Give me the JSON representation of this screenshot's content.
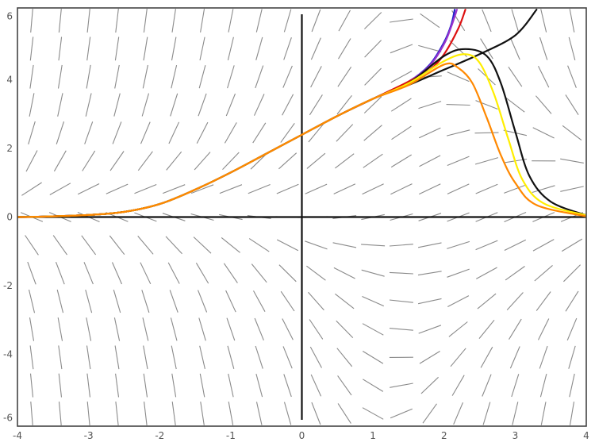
{
  "chart_data": {
    "type": "line",
    "title": "",
    "xlabel": "",
    "ylabel": "",
    "xlim": [
      -4,
      4
    ],
    "ylim": [
      -6.1,
      6.1
    ],
    "x_ticks": [
      -4,
      -3,
      -2,
      -1,
      0,
      1,
      2,
      3,
      4
    ],
    "y_ticks": [
      -6,
      -4,
      -2,
      0,
      2,
      4,
      6
    ],
    "x_tick_labels": [
      "-4",
      "-3",
      "-2",
      "-1",
      "0",
      "1",
      "2",
      "3",
      "4"
    ],
    "y_tick_labels": [
      "-6",
      "-4",
      "-2",
      "0",
      "2",
      "4",
      "6"
    ],
    "grid": false,
    "direction_field": true,
    "series": [
      {
        "color": "#2222cc",
        "points": [
          [
            -4,
            0
          ],
          [
            -3.5,
            0.02
          ],
          [
            -3,
            0.06
          ],
          [
            -2.5,
            0.15
          ],
          [
            -2,
            0.38
          ],
          [
            -1.5,
            0.8
          ],
          [
            -1,
            1.3
          ],
          [
            -0.5,
            1.85
          ],
          [
            0,
            2.4
          ],
          [
            0.5,
            2.95
          ],
          [
            1,
            3.45
          ],
          [
            1.5,
            3.95
          ],
          [
            1.8,
            4.45
          ],
          [
            2.0,
            5.1
          ],
          [
            2.1,
            5.6
          ],
          [
            2.15,
            6.05
          ]
        ]
      },
      {
        "color": "#9933cc",
        "points": [
          [
            -4,
            0
          ],
          [
            -3.5,
            0.02
          ],
          [
            -3,
            0.06
          ],
          [
            -2.5,
            0.15
          ],
          [
            -2,
            0.38
          ],
          [
            -1.5,
            0.8
          ],
          [
            -1,
            1.3
          ],
          [
            -0.5,
            1.85
          ],
          [
            0,
            2.4
          ],
          [
            0.5,
            2.95
          ],
          [
            1,
            3.45
          ],
          [
            1.5,
            3.95
          ],
          [
            1.8,
            4.42
          ],
          [
            2.0,
            5.05
          ],
          [
            2.1,
            5.55
          ],
          [
            2.18,
            6.05
          ]
        ]
      },
      {
        "color": "#dd1111",
        "points": [
          [
            -4,
            0
          ],
          [
            -3.5,
            0.02
          ],
          [
            -3,
            0.06
          ],
          [
            -2.5,
            0.15
          ],
          [
            -2,
            0.38
          ],
          [
            -1.5,
            0.8
          ],
          [
            -1,
            1.3
          ],
          [
            -0.5,
            1.85
          ],
          [
            0,
            2.4
          ],
          [
            0.5,
            2.95
          ],
          [
            1,
            3.45
          ],
          [
            1.5,
            3.95
          ],
          [
            1.8,
            4.3
          ],
          [
            2.0,
            4.75
          ],
          [
            2.2,
            5.5
          ],
          [
            2.3,
            6.05
          ]
        ]
      },
      {
        "color": "#111111",
        "points": [
          [
            -4,
            0
          ],
          [
            -3.5,
            0.02
          ],
          [
            -3,
            0.06
          ],
          [
            -2.5,
            0.15
          ],
          [
            -2,
            0.38
          ],
          [
            -1.5,
            0.8
          ],
          [
            -1,
            1.3
          ],
          [
            -0.5,
            1.85
          ],
          [
            0,
            2.4
          ],
          [
            0.5,
            2.95
          ],
          [
            1,
            3.45
          ],
          [
            1.5,
            3.85
          ],
          [
            2.0,
            4.3
          ],
          [
            2.5,
            4.75
          ],
          [
            3.0,
            5.3
          ],
          [
            3.3,
            6.05
          ]
        ]
      },
      {
        "color": "#111111",
        "points": [
          [
            -4,
            0
          ],
          [
            -3.5,
            0.02
          ],
          [
            -3,
            0.06
          ],
          [
            -2.5,
            0.15
          ],
          [
            -2,
            0.38
          ],
          [
            -1.5,
            0.8
          ],
          [
            -1,
            1.3
          ],
          [
            -0.5,
            1.85
          ],
          [
            0,
            2.4
          ],
          [
            0.5,
            2.95
          ],
          [
            1,
            3.45
          ],
          [
            1.5,
            3.9
          ],
          [
            2.0,
            4.7
          ],
          [
            2.3,
            4.9
          ],
          [
            2.6,
            4.7
          ],
          [
            2.8,
            3.9
          ],
          [
            3.0,
            2.5
          ],
          [
            3.2,
            1.2
          ],
          [
            3.5,
            0.45
          ],
          [
            4.0,
            0.05
          ]
        ]
      },
      {
        "color": "#ffee00",
        "points": [
          [
            -4,
            0
          ],
          [
            -3.5,
            0.02
          ],
          [
            -3,
            0.06
          ],
          [
            -2.5,
            0.15
          ],
          [
            -2,
            0.38
          ],
          [
            -1.5,
            0.8
          ],
          [
            -1,
            1.3
          ],
          [
            -0.5,
            1.85
          ],
          [
            0,
            2.4
          ],
          [
            0.5,
            2.95
          ],
          [
            1,
            3.45
          ],
          [
            1.5,
            3.9
          ],
          [
            2.0,
            4.55
          ],
          [
            2.3,
            4.75
          ],
          [
            2.5,
            4.5
          ],
          [
            2.7,
            3.6
          ],
          [
            2.9,
            2.3
          ],
          [
            3.1,
            1.1
          ],
          [
            3.4,
            0.4
          ],
          [
            4.0,
            0.05
          ]
        ]
      },
      {
        "color": "#ff8800",
        "points": [
          [
            -4,
            0
          ],
          [
            -3.5,
            0.02
          ],
          [
            -3,
            0.06
          ],
          [
            -2.5,
            0.15
          ],
          [
            -2,
            0.38
          ],
          [
            -1.5,
            0.8
          ],
          [
            -1,
            1.3
          ],
          [
            -0.5,
            1.85
          ],
          [
            0,
            2.4
          ],
          [
            0.5,
            2.95
          ],
          [
            1,
            3.45
          ],
          [
            1.5,
            3.85
          ],
          [
            2.0,
            4.45
          ],
          [
            2.2,
            4.35
          ],
          [
            2.4,
            3.9
          ],
          [
            2.6,
            2.9
          ],
          [
            2.8,
            1.8
          ],
          [
            3.0,
            1.0
          ],
          [
            3.3,
            0.35
          ],
          [
            4.0,
            0.02
          ]
        ]
      }
    ]
  }
}
